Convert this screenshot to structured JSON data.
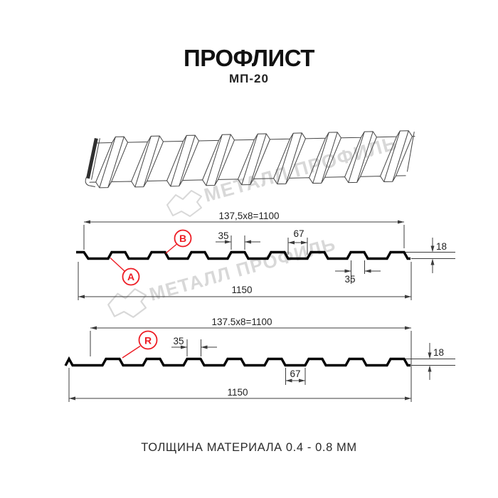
{
  "header": {
    "title": "ПРОФЛИСТ",
    "subtitle": "МП-20"
  },
  "watermark": {
    "text": "МЕТАЛЛ ПРОФИЛЬ"
  },
  "profile_top": {
    "dim_width_formula": "137,5x8=1100",
    "dim_total_width": "1150",
    "dim_crest_width": "35",
    "dim_valley_width": "67",
    "dim_height": "18",
    "dim_rib_base": "35",
    "label_a": "A",
    "label_b": "B"
  },
  "profile_bottom": {
    "dim_width_formula": "137.5x8=1100",
    "dim_total_width": "1150",
    "dim_crest_width": "35",
    "dim_valley_width": "67",
    "dim_height": "18",
    "label_r": "R"
  },
  "footer": {
    "material_thickness": "ТОЛЩИНА МАТЕРИАЛА 0.4 - 0.8 ММ"
  },
  "colors": {
    "accent_red": "#ed1c24",
    "line_black": "#000000",
    "watermark_gray": "#d8d8d8"
  }
}
